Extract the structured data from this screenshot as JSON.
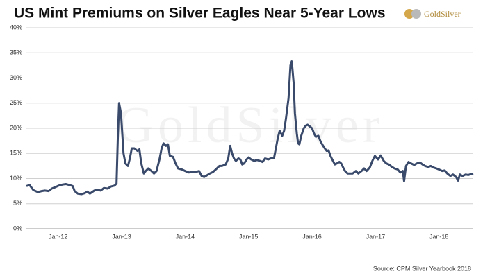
{
  "chart_data": {
    "type": "line",
    "title": "US Mint Premiums on Silver Eagles Near 5-Year Lows",
    "brand": "GoldSilver",
    "source": "Source: CPM Silver Yearbook 2018",
    "x": [
      2011.5,
      2011.55,
      2011.61,
      2011.68,
      2011.74,
      2011.79,
      2011.85,
      2011.9,
      2011.96,
      2012.01,
      2012.07,
      2012.12,
      2012.18,
      2012.23,
      2012.26,
      2012.31,
      2012.37,
      2012.42,
      2012.46,
      2012.5,
      2012.57,
      2012.61,
      2012.67,
      2012.72,
      2012.78,
      2012.83,
      2012.89,
      2012.92,
      2012.94,
      2012.96,
      2012.99,
      2013.01,
      2013.03,
      2013.06,
      2013.1,
      2013.13,
      2013.16,
      2013.2,
      2013.25,
      2013.28,
      2013.31,
      2013.35,
      2013.38,
      2013.42,
      2013.47,
      2013.51,
      2013.55,
      2013.6,
      2013.63,
      2013.66,
      2013.7,
      2013.73,
      2013.76,
      2013.81,
      2013.85,
      2013.89,
      2013.95,
      2014.0,
      2014.06,
      2014.11,
      2014.17,
      2014.22,
      2014.26,
      2014.3,
      2014.34,
      2014.39,
      2014.44,
      2014.5,
      2014.54,
      2014.58,
      2014.64,
      2014.68,
      2014.71,
      2014.74,
      2014.77,
      2014.8,
      2014.84,
      2014.87,
      2014.9,
      2014.93,
      2014.97,
      2015.0,
      2015.04,
      2015.09,
      2015.13,
      2015.18,
      2015.22,
      2015.26,
      2015.31,
      2015.35,
      2015.4,
      2015.43,
      2015.46,
      2015.49,
      2015.53,
      2015.56,
      2015.59,
      2015.63,
      2015.66,
      2015.68,
      2015.69,
      2015.71,
      2015.73,
      2015.76,
      2015.78,
      2015.8,
      2015.83,
      2015.87,
      2015.9,
      2015.93,
      2015.97,
      2016.0,
      2016.03,
      2016.06,
      2016.1,
      2016.13,
      2016.16,
      2016.2,
      2016.23,
      2016.26,
      2016.29,
      2016.33,
      2016.36,
      2016.39,
      2016.43,
      2016.46,
      2016.49,
      2016.52,
      2016.56,
      2016.6,
      2016.64,
      2016.69,
      2016.73,
      2016.78,
      2016.82,
      2016.86,
      2016.91,
      2016.95,
      2016.99,
      2017.04,
      2017.08,
      2017.13,
      2017.17,
      2017.21,
      2017.26,
      2017.3,
      2017.35,
      2017.39,
      2017.43,
      2017.45,
      2017.48,
      2017.52,
      2017.56,
      2017.61,
      2017.65,
      2017.7,
      2017.74,
      2017.78,
      2017.83,
      2017.87,
      2017.91,
      2017.96,
      2018.0,
      2018.05,
      2018.09,
      2018.13,
      2018.18,
      2018.22,
      2018.27,
      2018.3,
      2018.33,
      2018.37,
      2018.42,
      2018.46,
      2018.51,
      2018.54
    ],
    "values": [
      8.5,
      8.7,
      7.7,
      7.3,
      7.5,
      7.6,
      7.5,
      8.0,
      8.3,
      8.6,
      8.8,
      8.9,
      8.7,
      8.5,
      7.5,
      7.0,
      6.9,
      7.1,
      7.4,
      7.0,
      7.6,
      7.8,
      7.6,
      8.1,
      8.0,
      8.4,
      8.6,
      9.0,
      18,
      25,
      23,
      19,
      15,
      13,
      12.5,
      14,
      16,
      16,
      15.5,
      15.8,
      13,
      11,
      11.5,
      12,
      11.5,
      11,
      11.5,
      14,
      16,
      17,
      16.5,
      16.8,
      14.5,
      14.3,
      13,
      12,
      11.8,
      11.5,
      11.2,
      11.3,
      11.3,
      11.5,
      10.5,
      10.3,
      10.6,
      11,
      11.3,
      12,
      12.5,
      12.5,
      12.8,
      14,
      16.5,
      15,
      14,
      13.5,
      14,
      13.8,
      12.8,
      13,
      13.8,
      14.2,
      13.8,
      13.5,
      13.7,
      13.5,
      13.3,
      14,
      13.8,
      14,
      14,
      16,
      18,
      19.5,
      18.5,
      19.5,
      22,
      26,
      32.5,
      33.3,
      32,
      29,
      23,
      19,
      17,
      16.8,
      18.5,
      20,
      20.5,
      20.7,
      20.3,
      20,
      19,
      18.3,
      18.5,
      17.5,
      16.8,
      16,
      15.5,
      15.6,
      14.5,
      13.5,
      12.8,
      13,
      13.3,
      13,
      12.2,
      11.5,
      11,
      11,
      11,
      11.5,
      11,
      11.5,
      12,
      11.5,
      12.2,
      13.5,
      14.5,
      13.8,
      14.6,
      13.5,
      13,
      12.8,
      12.3,
      12,
      11.8,
      11.2,
      11.5,
      9.5,
      12.5,
      13.3,
      13,
      12.7,
      13,
      13.2,
      12.8,
      12.5,
      12.3,
      12.5,
      12.2,
      12,
      11.8,
      11.5,
      11.6,
      11,
      10.5,
      10.8,
      10.3,
      9.6,
      10.8,
      10.5,
      10.8,
      10.7,
      10.9,
      11
    ],
    "color": "#3a4a6b",
    "xlim": [
      2011.5,
      2018.54
    ],
    "xticks": [
      {
        "value": 2012,
        "label": "Jan-12"
      },
      {
        "value": 2013,
        "label": "Jan-13"
      },
      {
        "value": 2014,
        "label": "Jan-14"
      },
      {
        "value": 2015,
        "label": "Jan-15"
      },
      {
        "value": 2016,
        "label": "Jan-16"
      },
      {
        "value": 2017,
        "label": "Jan-17"
      },
      {
        "value": 2018,
        "label": "Jan-18"
      }
    ],
    "ylim": [
      0,
      40
    ],
    "yticks": [
      {
        "value": 0,
        "label": "0%"
      },
      {
        "value": 5,
        "label": "5%"
      },
      {
        "value": 10,
        "label": "10%"
      },
      {
        "value": 15,
        "label": "15%"
      },
      {
        "value": 20,
        "label": "20%"
      },
      {
        "value": 25,
        "label": "25%"
      },
      {
        "value": 30,
        "label": "30%"
      },
      {
        "value": 35,
        "label": "35%"
      },
      {
        "value": 40,
        "label": "40%"
      }
    ],
    "grid": true
  }
}
